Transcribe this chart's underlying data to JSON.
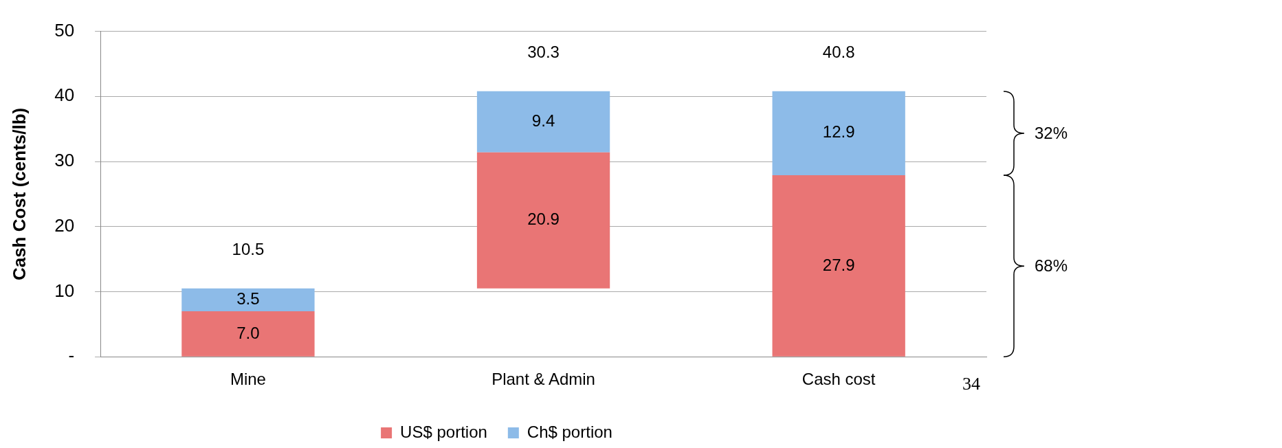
{
  "chart_data": {
    "type": "bar",
    "stacked": true,
    "ylabel": "Cash Cost (cents/lb)",
    "categories": [
      "Mine",
      "Plant & Admin",
      "Cash cost"
    ],
    "series": [
      {
        "name": "US$ portion",
        "color": "#e97575",
        "values": [
          7.0,
          20.9,
          27.9
        ],
        "base": [
          0,
          10.5,
          0
        ],
        "value_labels": [
          "7.0",
          "20.9",
          "27.9"
        ]
      },
      {
        "name": "Ch$ portion",
        "color": "#8dbbe8",
        "values": [
          3.5,
          9.4,
          12.9
        ],
        "value_labels": [
          "3.5",
          "9.4",
          "12.9"
        ]
      }
    ],
    "totals": [
      "10.5",
      "30.3",
      "40.8"
    ],
    "ylim": [
      0,
      50
    ],
    "yticks": [
      {
        "value": 0,
        "label": "-"
      },
      10,
      20,
      30,
      40,
      50
    ],
    "grid": "y",
    "legend": "bottom",
    "annotations": [
      "32%",
      "68%",
      "34"
    ]
  }
}
